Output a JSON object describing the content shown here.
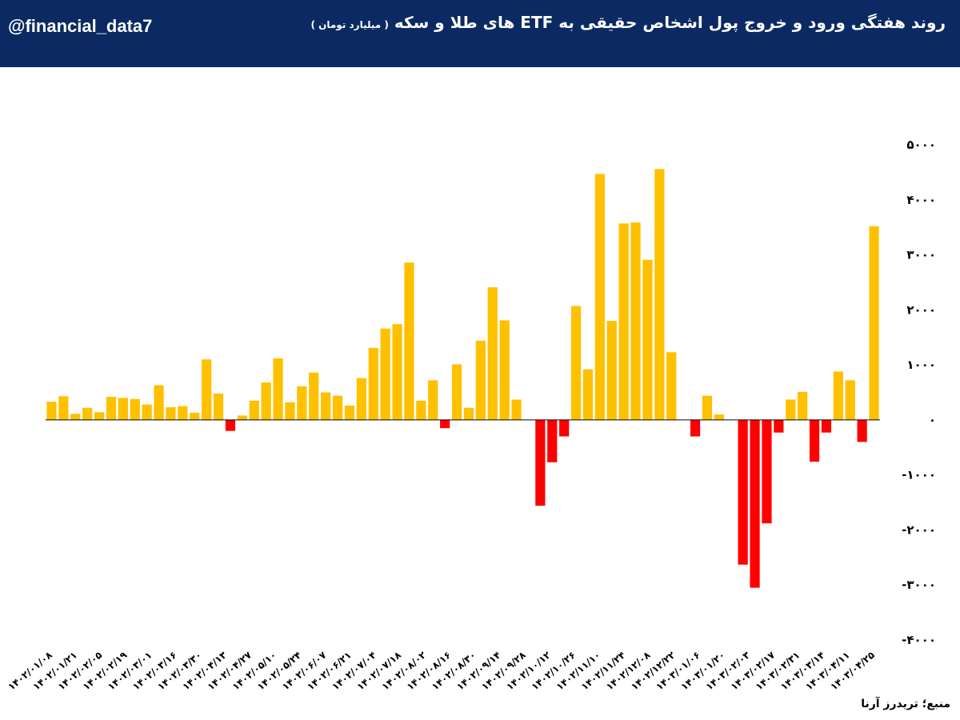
{
  "header": {
    "handle": "@financial_data7",
    "title": "روند هفتگی ورود و خروج پول اشخاص حقیقی به ETF های طلا و سکه",
    "subtitle": "( میلیارد تومان )",
    "background": "#0b2a63"
  },
  "source": "منبع؛ تریدرز آرنا",
  "chart_data": {
    "type": "bar",
    "title": "روند هفتگی ورود و خروج پول اشخاص حقیقی به ETF های طلا و سکه",
    "ylabel": "",
    "ylim": [
      -4000,
      5000
    ],
    "yticks": [
      5000,
      4000,
      3000,
      2000,
      1000,
      0,
      -1000,
      -2000,
      -3000,
      -4000
    ],
    "ytick_labels": [
      "۵۰۰۰",
      "۴۰۰۰",
      "۳۰۰۰",
      "۲۰۰۰",
      "۱۰۰۰",
      "۰",
      "-۱۰۰۰",
      "-۲۰۰۰",
      "-۳۰۰۰",
      "-۴۰۰۰"
    ],
    "positive_color": "#ffc000",
    "negative_color": "#ff0000",
    "grid": false,
    "x_tick_labels": [
      "۱۴۰۲/۰۱/۰۸",
      "۱۴۰۲/۰۱/۲۱",
      "۱۴۰۲/۰۲/۰۵",
      "۱۴۰۲/۰۲/۱۹",
      "۱۴۰۲/۰۳/۰۱",
      "۱۴۰۲/۰۳/۱۶",
      "۱۴۰۲/۰۳/۳۰",
      "۱۴۰۲/۰۴/۱۳",
      "۱۴۰۲/۰۴/۲۷",
      "۱۴۰۲/۰۵/۱۰",
      "۱۴۰۲/۰۵/۲۴",
      "۱۴۰۲/۰۶/۰۷",
      "۱۴۰۲/۰۶/۲۱",
      "۱۴۰۲/۰۷/۰۴",
      "۱۴۰۲/۰۷/۱۸",
      "۱۴۰۲/۰۸/۰۲",
      "۱۴۰۲/۰۸/۱۶",
      "۱۴۰۲/۰۸/۳۰",
      "۱۴۰۲/۰۹/۱۴",
      "۱۴۰۲/۰۹/۲۸",
      "۱۴۰۲/۱۰/۱۲",
      "۱۴۰۲/۱۰/۲۶",
      "۱۴۰۲/۱۱/۱۰",
      "۱۴۰۲/۱۱/۲۴",
      "۱۴۰۲/۱۲/۰۸",
      "۱۴۰۲/۱۲/۲۲",
      "۱۴۰۳/۰۱/۰۶",
      "۱۴۰۳/۰۱/۲۰",
      "۱۴۰۳/۰۲/۰۳",
      "۱۴۰۳/۰۲/۱۷",
      "۱۴۰۳/۰۲/۳۱",
      "۱۴۰۳/۰۳/۱۴",
      "۱۴۰۳/۰۴/۱۱",
      "۱۴۰۳/۰۴/۲۵"
    ],
    "values": [
      330,
      430,
      110,
      220,
      140,
      420,
      400,
      380,
      280,
      630,
      230,
      250,
      130,
      1100,
      480,
      -200,
      80,
      350,
      680,
      1120,
      320,
      610,
      860,
      500,
      440,
      260,
      760,
      1310,
      1660,
      1740,
      2860,
      350,
      720,
      -150,
      1010,
      220,
      1440,
      2410,
      1810,
      370,
      0,
      -1560,
      -770,
      -300,
      2070,
      920,
      4470,
      1800,
      3570,
      3590,
      2910,
      4560,
      1230,
      0,
      -300,
      440,
      100,
      0,
      -2630,
      -3050,
      -1880,
      -230,
      370,
      510,
      -760,
      -230,
      880,
      720,
      -400,
      3520
    ]
  }
}
